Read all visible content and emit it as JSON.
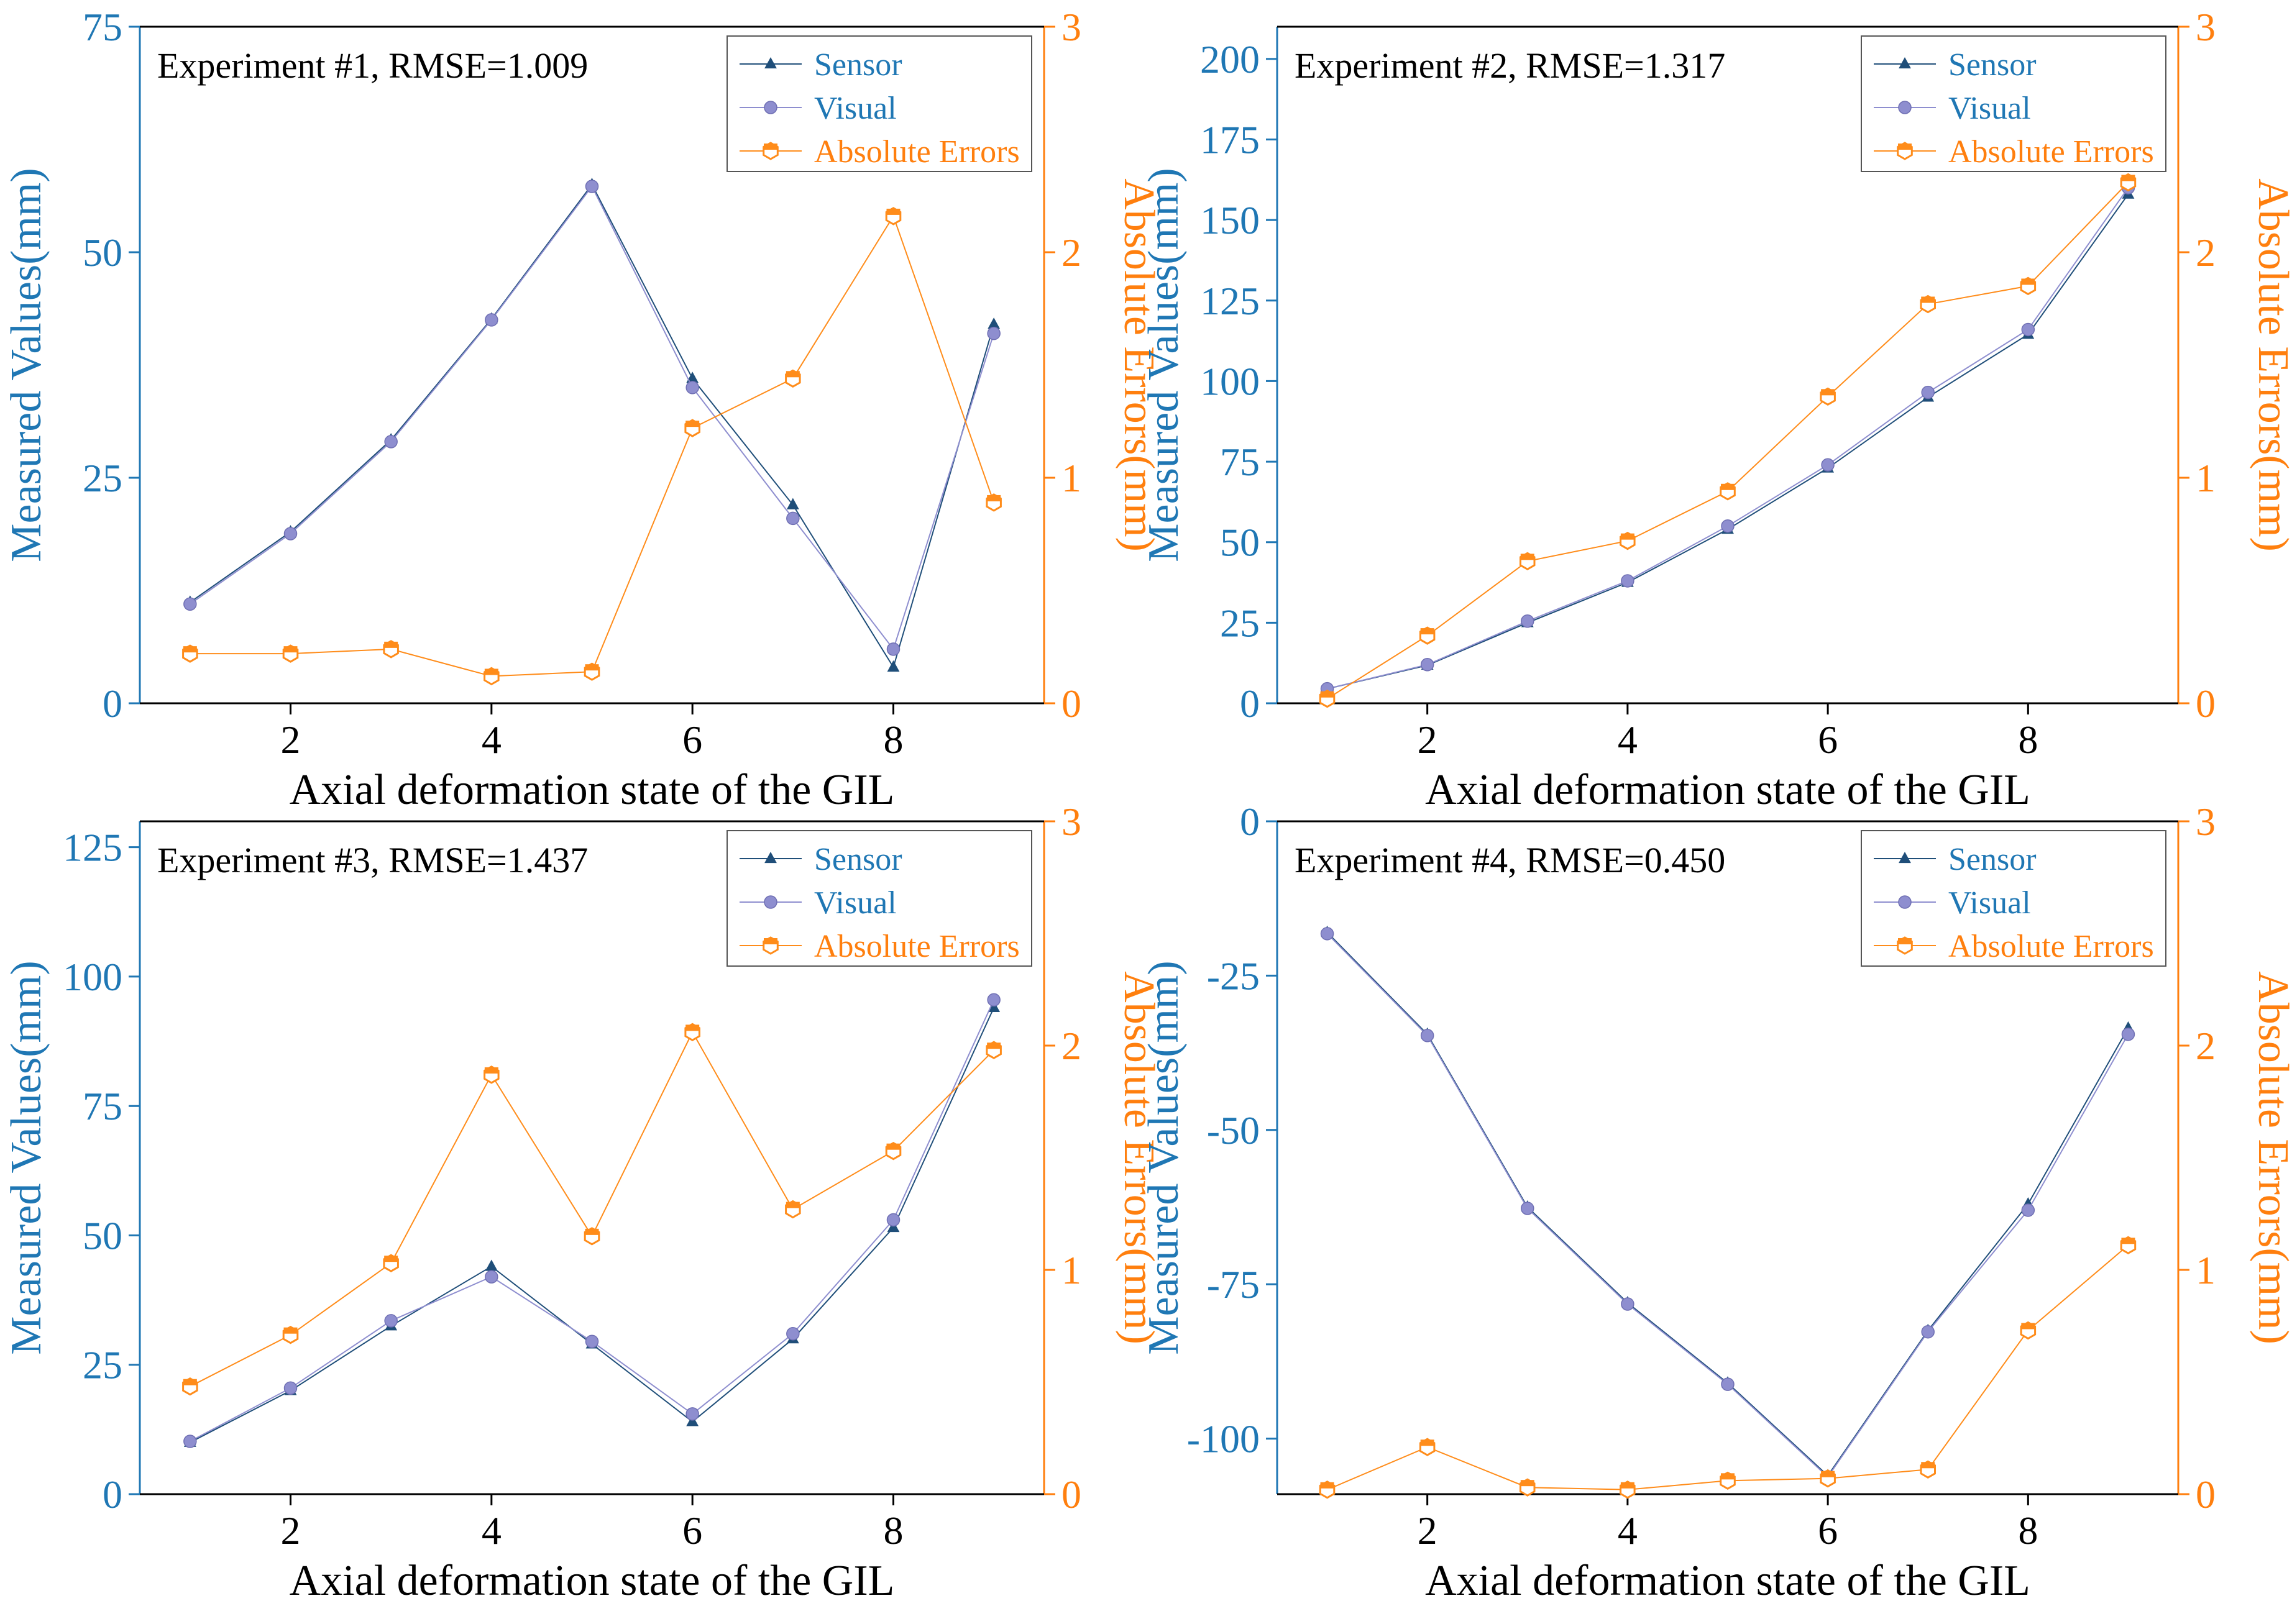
{
  "colors": {
    "sensor": "#1f4e79",
    "visual": "#8e8ecf",
    "errors": "#ff8c1a",
    "left_axis": "#1f77b4",
    "right_axis": "#ff7f0e"
  },
  "chart_data": [
    {
      "type": "line",
      "annotation": "Experiment #1, RMSE=1.009",
      "xlabel": "Axial deformation state of the GIL",
      "ylabel_left": "Measured Values(mm)",
      "ylabel_right": "Absolute Errors(mm)",
      "xlim": [
        0.5,
        9.5
      ],
      "xticks": [
        "2",
        "4",
        "6",
        "8"
      ],
      "xtick_values": [
        2,
        4,
        6,
        8
      ],
      "ylim_left": [
        0,
        75
      ],
      "yticks_left": [
        "0",
        "25",
        "50",
        "75"
      ],
      "ytick_values_left": [
        0,
        25,
        50,
        75
      ],
      "ylim_right": [
        0,
        3
      ],
      "yticks_right": [
        "0",
        "1",
        "2",
        "3"
      ],
      "ytick_values_right": [
        0,
        1,
        2,
        3
      ],
      "x": [
        1,
        2,
        3,
        4,
        5,
        6,
        7,
        8,
        9
      ],
      "series": [
        {
          "name": "Sensor",
          "axis": "left",
          "values": [
            11.2,
            19.0,
            29.2,
            42.6,
            57.5,
            36.0,
            22.0,
            4.0,
            42.0
          ]
        },
        {
          "name": "Visual",
          "axis": "left",
          "values": [
            11.0,
            18.8,
            29.0,
            42.5,
            57.3,
            35.0,
            20.5,
            6.0,
            41.0
          ]
        },
        {
          "name": "Absolute Errors",
          "axis": "right",
          "values": [
            0.22,
            0.22,
            0.24,
            0.12,
            0.14,
            1.22,
            1.44,
            2.16,
            0.89
          ]
        }
      ]
    },
    {
      "type": "line",
      "annotation": "Experiment #2, RMSE=1.317",
      "xlabel": "Axial deformation state of the GIL",
      "ylabel_left": "Measured Values(mm)",
      "ylabel_right": "Absolute Errors(mm)",
      "xlim": [
        0.5,
        9.5
      ],
      "xticks": [
        "2",
        "4",
        "6",
        "8"
      ],
      "xtick_values": [
        2,
        4,
        6,
        8
      ],
      "ylim_left": [
        0,
        210
      ],
      "yticks_left": [
        "0",
        "25",
        "50",
        "75",
        "100",
        "125",
        "150",
        "175",
        "200"
      ],
      "ytick_values_left": [
        0,
        25,
        50,
        75,
        100,
        125,
        150,
        175,
        200
      ],
      "ylim_right": [
        0,
        3
      ],
      "yticks_right": [
        "0",
        "1",
        "2",
        "3"
      ],
      "ytick_values_right": [
        0,
        1,
        2,
        3
      ],
      "x": [
        1,
        2,
        3,
        4,
        5,
        6,
        7,
        8,
        9
      ],
      "series": [
        {
          "name": "Sensor",
          "axis": "left",
          "values": [
            4.5,
            11.8,
            25.0,
            37.5,
            54.0,
            73.0,
            95.0,
            114.5,
            158.0
          ]
        },
        {
          "name": "Visual",
          "axis": "left",
          "values": [
            4.5,
            12.0,
            25.5,
            38.0,
            55.0,
            74.0,
            96.5,
            116.0,
            160.0
          ]
        },
        {
          "name": "Absolute Errors",
          "axis": "right",
          "values": [
            0.02,
            0.3,
            0.63,
            0.72,
            0.94,
            1.36,
            1.77,
            1.85,
            2.31
          ]
        }
      ]
    },
    {
      "type": "line",
      "annotation": "Experiment #3, RMSE=1.437",
      "xlabel": "Axial deformation state of the GIL",
      "ylabel_left": "Measured Values(mm)",
      "ylabel_right": "Absolute Errors(mm)",
      "xlim": [
        0.5,
        9.5
      ],
      "xticks": [
        "2",
        "4",
        "6",
        "8"
      ],
      "xtick_values": [
        2,
        4,
        6,
        8
      ],
      "ylim_left": [
        0,
        130
      ],
      "yticks_left": [
        "0",
        "25",
        "50",
        "75",
        "100",
        "125"
      ],
      "ytick_values_left": [
        0,
        25,
        50,
        75,
        100,
        125
      ],
      "ylim_right": [
        0,
        3
      ],
      "yticks_right": [
        "0",
        "1",
        "2",
        "3"
      ],
      "ytick_values_right": [
        0,
        1,
        2,
        3
      ],
      "x": [
        1,
        2,
        3,
        4,
        5,
        6,
        7,
        8,
        9
      ],
      "series": [
        {
          "name": "Sensor",
          "axis": "left",
          "values": [
            10.0,
            20.0,
            32.5,
            44.0,
            29.0,
            14.0,
            30.0,
            51.5,
            94.0
          ]
        },
        {
          "name": "Visual",
          "axis": "left",
          "values": [
            10.2,
            20.5,
            33.5,
            42.0,
            29.5,
            15.5,
            31.0,
            53.0,
            95.5
          ]
        },
        {
          "name": "Absolute Errors",
          "axis": "right",
          "values": [
            0.48,
            0.71,
            1.03,
            1.87,
            1.15,
            2.06,
            1.27,
            1.53,
            1.98
          ]
        }
      ]
    },
    {
      "type": "line",
      "annotation": "Experiment #4, RMSE=0.450",
      "xlabel": "Axial deformation state of the GIL",
      "ylabel_left": "Measured Values(mm)",
      "ylabel_right": "Absolute Errors(mm)",
      "xlim": [
        0.5,
        9.5
      ],
      "xticks": [
        "2",
        "4",
        "6",
        "8"
      ],
      "xtick_values": [
        2,
        4,
        6,
        8
      ],
      "ylim_left": [
        -109,
        0
      ],
      "yticks_left": [
        "0",
        "-25",
        "-50",
        "-75",
        "-100"
      ],
      "ytick_values_left": [
        0,
        -25,
        -50,
        -75,
        -100
      ],
      "ylim_right": [
        0,
        3
      ],
      "yticks_right": [
        "0",
        "1",
        "2",
        "3"
      ],
      "ytick_values_right": [
        0,
        1,
        2,
        3
      ],
      "x": [
        1,
        2,
        3,
        4,
        5,
        6,
        7,
        8,
        9
      ],
      "series": [
        {
          "name": "Sensor",
          "axis": "left",
          "values": [
            -18.0,
            -34.5,
            -62.5,
            -78.0,
            -91.0,
            -106.0,
            -82.5,
            -62.0,
            -33.5
          ]
        },
        {
          "name": "Visual",
          "axis": "left",
          "values": [
            -18.2,
            -34.7,
            -62.7,
            -78.2,
            -91.2,
            -106.2,
            -82.7,
            -63.0,
            -34.5
          ]
        },
        {
          "name": "Absolute Errors",
          "axis": "right",
          "values": [
            0.02,
            0.21,
            0.03,
            0.02,
            0.06,
            0.07,
            0.11,
            0.73,
            1.11
          ]
        }
      ]
    }
  ]
}
